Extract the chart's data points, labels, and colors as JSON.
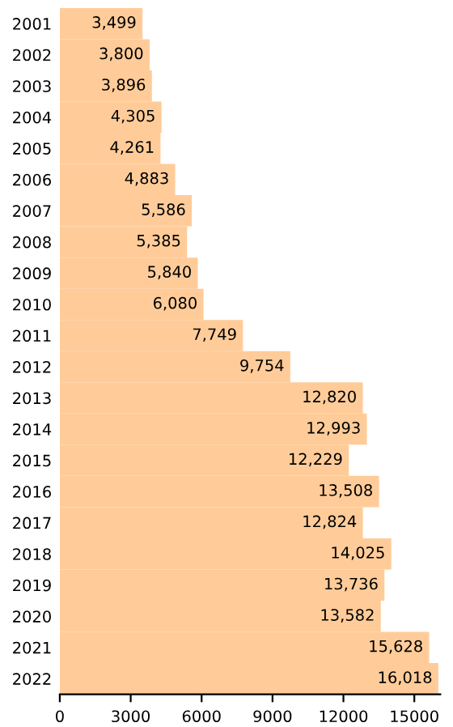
{
  "chart_data": {
    "type": "bar",
    "orientation": "horizontal",
    "categories": [
      "2001",
      "2002",
      "2003",
      "2004",
      "2005",
      "2006",
      "2007",
      "2008",
      "2009",
      "2010",
      "2011",
      "2012",
      "2013",
      "2014",
      "2015",
      "2016",
      "2017",
      "2018",
      "2019",
      "2020",
      "2021",
      "2022"
    ],
    "values": [
      3499,
      3800,
      3896,
      4305,
      4261,
      4883,
      5586,
      5385,
      5840,
      6080,
      7749,
      9754,
      12820,
      12993,
      12229,
      13508,
      12824,
      14025,
      13736,
      13582,
      15628,
      16018
    ],
    "value_labels": [
      "3,499",
      "3,800",
      "3,896",
      "4,305",
      "4,261",
      "4,883",
      "5,586",
      "5,385",
      "5,840",
      "6,080",
      "7,749",
      "9,754",
      "12,820",
      "12,993",
      "12,229",
      "13,508",
      "12,824",
      "14,025",
      "13,736",
      "13,582",
      "15,628",
      "16,018"
    ],
    "color": "#ffcc99",
    "xlim": [
      0,
      16100
    ],
    "xticks": [
      0,
      3000,
      6000,
      9000,
      12000,
      15000
    ],
    "grid": false,
    "legend": false
  }
}
